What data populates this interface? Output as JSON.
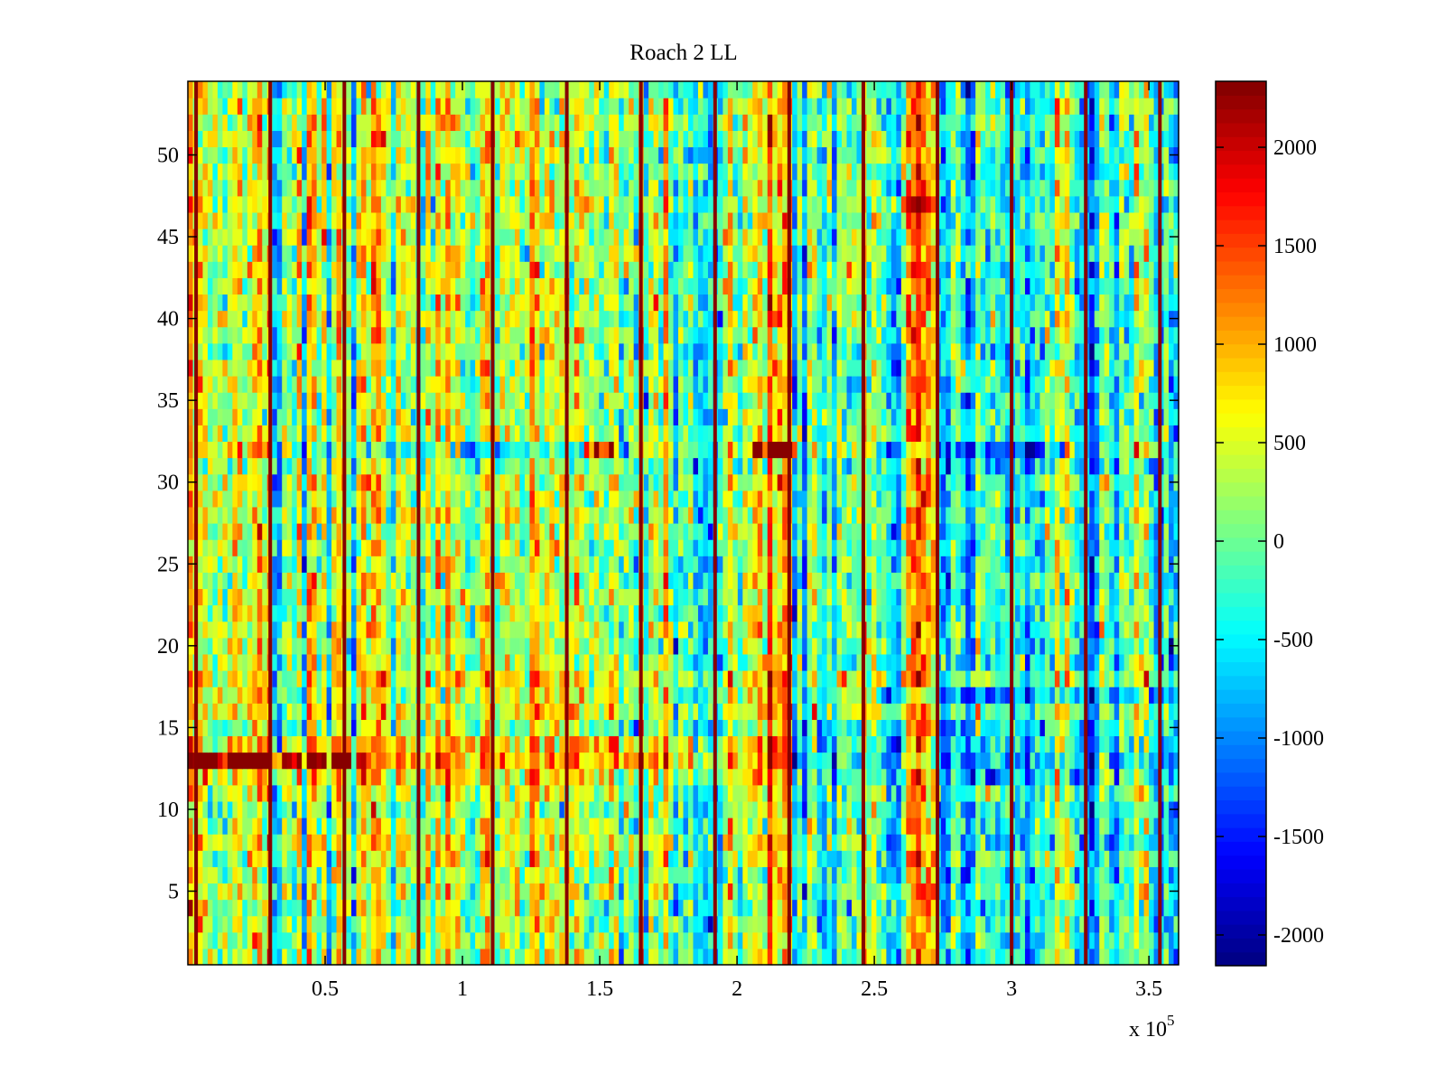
{
  "chart_data": {
    "type": "heatmap",
    "title": "Roach 2 LL",
    "xlabel": "",
    "ylabel": "",
    "x_multiplier_label": "x 10",
    "x_multiplier_exponent": "5",
    "xlim": [
      0,
      360800
    ],
    "ylim": [
      0.5,
      54.5
    ],
    "n_rows": 54,
    "n_cols": 200,
    "grid": false,
    "colormap": "jet",
    "clim": [
      -2156,
      2335
    ],
    "x_ticks": [
      50000,
      100000,
      150000,
      200000,
      250000,
      300000,
      350000
    ],
    "x_tick_labels": [
      "0.5",
      "1",
      "1.5",
      "2",
      "2.5",
      "3",
      "3.5"
    ],
    "y_ticks": [
      5,
      10,
      15,
      20,
      25,
      30,
      35,
      40,
      45,
      50
    ],
    "y_tick_labels": [
      "5",
      "10",
      "15",
      "20",
      "25",
      "30",
      "35",
      "40",
      "45",
      "50"
    ],
    "colorbar": {
      "ticks": [
        -2000,
        -1500,
        -1000,
        -500,
        0,
        500,
        1000,
        1500,
        2000
      ],
      "tick_labels": [
        "-2000",
        "-1500",
        "-1000",
        "-500",
        "0",
        "500",
        "1000",
        "1500",
        "2000"
      ],
      "position": "right"
    },
    "spike_columns_x": [
      3000,
      30000,
      57000,
      84000,
      111000,
      138000,
      165000,
      192000,
      219000,
      246000,
      273000,
      300000,
      327000,
      354000
    ],
    "spike_value": 2300,
    "row_bias": [
      200,
      100,
      150,
      50,
      250,
      0,
      300,
      500,
      100,
      -100,
      300,
      600,
      1100,
      800,
      0,
      500,
      400,
      600,
      150,
      100,
      200,
      150,
      250,
      200,
      100,
      200,
      200,
      250,
      150,
      250,
      0,
      400,
      200,
      100,
      150,
      200,
      250,
      0,
      200,
      250,
      250,
      200,
      300,
      300,
      250,
      300,
      250,
      200,
      150,
      200,
      300,
      350,
      250,
      150
    ],
    "column_segments": [
      {
        "x_start": 0,
        "x_end": 8000,
        "bias": 900
      },
      {
        "x_start": 8000,
        "x_end": 55000,
        "bias": 200
      },
      {
        "x_start": 55000,
        "x_end": 110000,
        "bias": 250
      },
      {
        "x_start": 110000,
        "x_end": 165000,
        "bias": 150
      },
      {
        "x_start": 165000,
        "x_end": 205000,
        "bias": -350
      },
      {
        "x_start": 205000,
        "x_end": 220000,
        "bias": 600
      },
      {
        "x_start": 220000,
        "x_end": 245000,
        "bias": -250
      },
      {
        "x_start": 245000,
        "x_end": 250000,
        "bias": 500
      },
      {
        "x_start": 250000,
        "x_end": 260000,
        "bias": -450
      },
      {
        "x_start": 260000,
        "x_end": 272000,
        "bias": 700
      },
      {
        "x_start": 272000,
        "x_end": 315000,
        "bias": -600
      },
      {
        "x_start": 315000,
        "x_end": 322000,
        "bias": 250
      },
      {
        "x_start": 322000,
        "x_end": 360800,
        "bias": -450
      }
    ],
    "row_region_extra": [
      {
        "row": 32,
        "x_start": 40000,
        "x_end": 160000,
        "bias": -900
      },
      {
        "row": 32,
        "x_start": 145000,
        "x_end": 155000,
        "bias": 2400
      },
      {
        "row": 32,
        "x_start": 205000,
        "x_end": 222000,
        "bias": 1800
      },
      {
        "row": 32,
        "x_start": 250000,
        "x_end": 320000,
        "bias": -900
      },
      {
        "row": 13,
        "x_start": 0,
        "x_end": 60000,
        "bias": 1400
      },
      {
        "row": 13,
        "x_start": 220000,
        "x_end": 360800,
        "bias": -1200
      },
      {
        "row": 14,
        "x_start": 220000,
        "x_end": 360800,
        "bias": -800
      },
      {
        "row": 12,
        "x_start": 220000,
        "x_end": 360800,
        "bias": -500
      },
      {
        "row": 17,
        "x_start": 250000,
        "x_end": 360800,
        "bias": -700
      },
      {
        "row": 8,
        "x_start": 250000,
        "x_end": 360800,
        "bias": -600
      },
      {
        "row": 47,
        "x_start": 255000,
        "x_end": 272000,
        "bias": 700
      }
    ],
    "noise_amplitude": 750,
    "seed": 20240
  }
}
